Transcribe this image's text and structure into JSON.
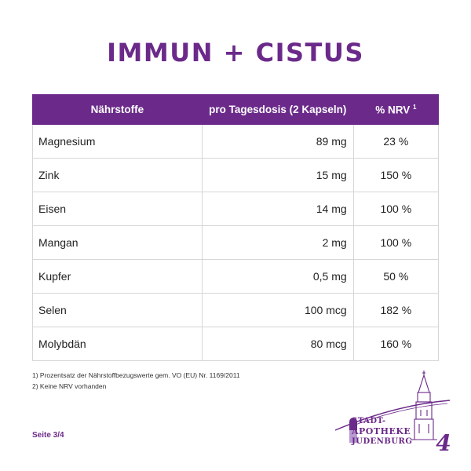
{
  "title": "IMMUN + CISTUS",
  "table": {
    "headers": {
      "nutrient": "Nährstoffe",
      "dose": "pro Tagesdosis (2 Kapseln)",
      "nrv": "% NRV",
      "nrv_sup": "1"
    },
    "rows": [
      {
        "nutrient": "Magnesium",
        "dose": "89 mg",
        "nrv": "23 %"
      },
      {
        "nutrient": "Zink",
        "dose": "15 mg",
        "nrv": "150 %"
      },
      {
        "nutrient": "Eisen",
        "dose": "14 mg",
        "nrv": "100 %"
      },
      {
        "nutrient": "Mangan",
        "dose": "2 mg",
        "nrv": "100 %"
      },
      {
        "nutrient": "Kupfer",
        "dose": "0,5 mg",
        "nrv": "50 %"
      },
      {
        "nutrient": "Selen",
        "dose": "100 mcg",
        "nrv": "182 %"
      },
      {
        "nutrient": "Molybdän",
        "dose": "80 mcg",
        "nrv": "160 %"
      }
    ]
  },
  "footnotes": {
    "note1": "1) Prozentsatz der Nährstoffbezugswerte gem. VO (EU) Nr. 1169/2011",
    "note2": "2) Keine NRV vorhanden"
  },
  "page_label": "Seite 3/4",
  "logo": {
    "line1": "STADT-",
    "line2": "APOTHEKE",
    "line3": "JUDENBURG",
    "badge": "4",
    "brand_color": "#6b2a8a"
  }
}
